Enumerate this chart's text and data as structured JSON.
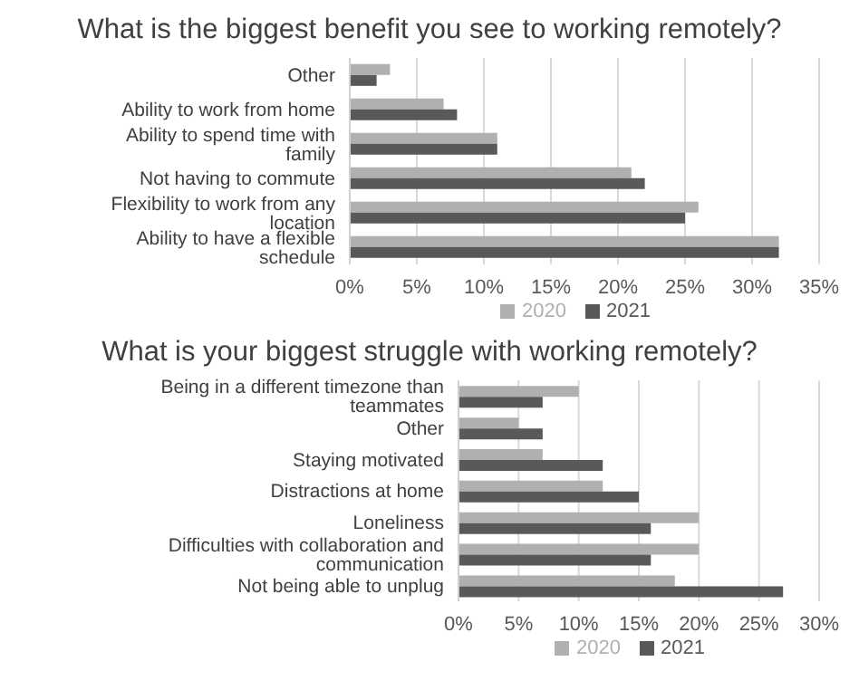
{
  "chart_data": [
    {
      "type": "bar",
      "orientation": "horizontal",
      "title": "What is the biggest benefit you see to working remotely?",
      "categories": [
        "Other",
        "Ability to work from home",
        "Ability to spend time with family",
        "Not having to commute",
        "Flexibility to work from any location",
        "Ability to have a flexible schedule"
      ],
      "series": [
        {
          "name": "2020",
          "color": "#b0b0b0",
          "values": [
            3,
            7,
            11,
            21,
            26,
            32
          ]
        },
        {
          "name": "2021",
          "color": "#595959",
          "values": [
            2,
            8,
            11,
            22,
            25,
            32
          ]
        }
      ],
      "xlim": [
        0,
        35
      ],
      "xticks": [
        {
          "value": 0,
          "label": "0%"
        },
        {
          "value": 5,
          "label": "5%"
        },
        {
          "value": 10,
          "label": "10%"
        },
        {
          "value": 15,
          "label": "15%"
        },
        {
          "value": 20,
          "label": "20%"
        },
        {
          "value": 25,
          "label": "25%"
        },
        {
          "value": 30,
          "label": "30%"
        },
        {
          "value": 35,
          "label": "35%"
        }
      ],
      "grid": "x",
      "legend": "bottom"
    },
    {
      "type": "bar",
      "orientation": "horizontal",
      "title": "What is your biggest struggle with working remotely?",
      "categories": [
        "Being in a different timezone than teammates",
        "Other",
        "Staying motivated",
        "Distractions at home",
        "Loneliness",
        "Difficulties with collaboration and communication",
        "Not being able to unplug"
      ],
      "series": [
        {
          "name": "2020",
          "color": "#b0b0b0",
          "values": [
            10,
            5,
            7,
            12,
            20,
            20,
            18
          ]
        },
        {
          "name": "2021",
          "color": "#595959",
          "values": [
            7,
            7,
            12,
            15,
            16,
            16,
            27
          ]
        }
      ],
      "xlim": [
        0,
        30
      ],
      "xticks": [
        {
          "value": 0,
          "label": "0%"
        },
        {
          "value": 5,
          "label": "5%"
        },
        {
          "value": 10,
          "label": "10%"
        },
        {
          "value": 15,
          "label": "15%"
        },
        {
          "value": 20,
          "label": "20%"
        },
        {
          "value": 25,
          "label": "25%"
        },
        {
          "value": 30,
          "label": "30%"
        }
      ],
      "grid": "x",
      "legend": "bottom"
    }
  ]
}
